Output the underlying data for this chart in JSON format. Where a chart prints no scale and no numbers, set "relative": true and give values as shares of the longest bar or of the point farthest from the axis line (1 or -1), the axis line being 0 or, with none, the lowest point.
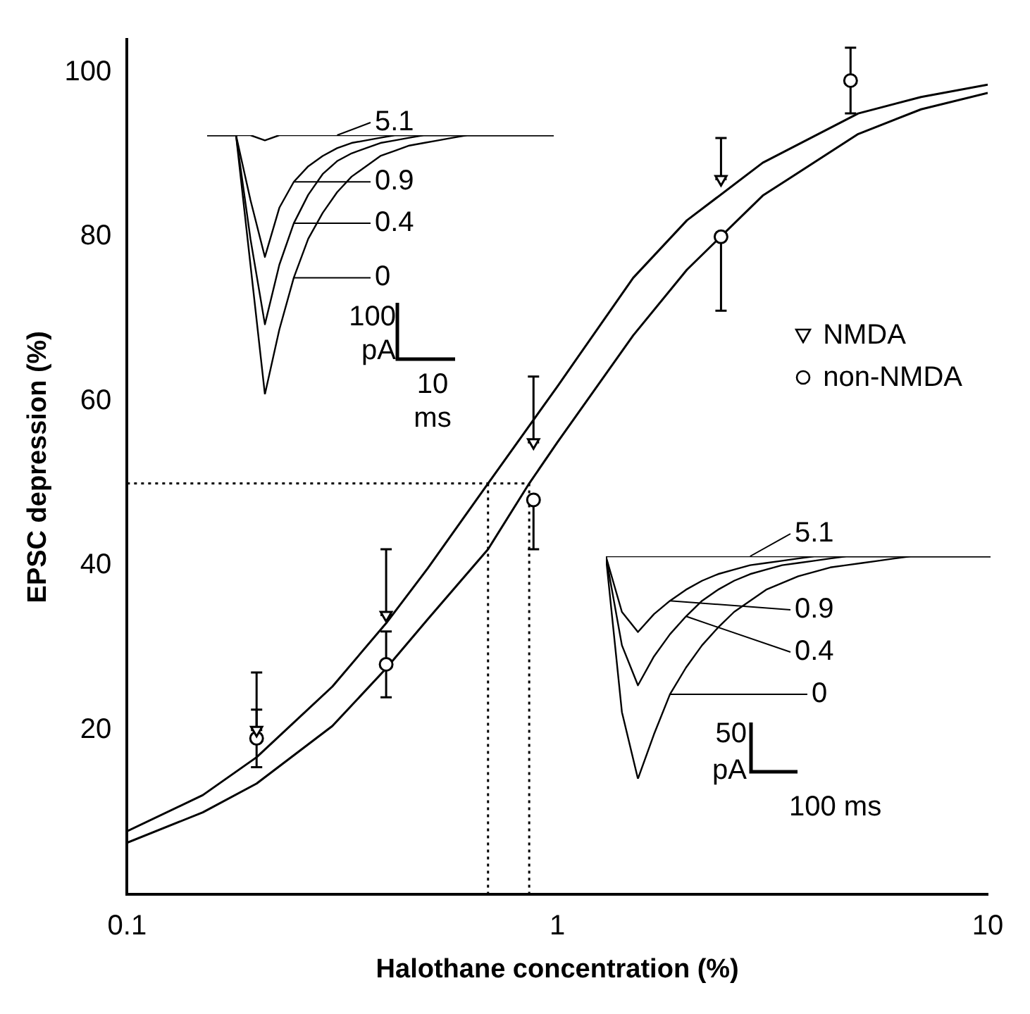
{
  "chart_data": [
    {
      "type": "scatter",
      "xlabel": "Halothane concentration (%)",
      "ylabel": "EPSC depression (%)",
      "log": "x",
      "xlim": [
        0.1,
        10
      ],
      "xticks": [
        0.1,
        1,
        10
      ],
      "ylim": [
        0,
        104
      ],
      "yticks": [
        20,
        40,
        60,
        80,
        100
      ],
      "grid": false,
      "legend": "right",
      "series": [
        {
          "name": "NMDA",
          "type": "scatter",
          "marker": "triangle",
          "color": "#000000",
          "x": [
            0.2,
            0.4,
            0.88,
            2.4
          ],
          "values": [
            20,
            34,
            55,
            87
          ],
          "errors": [
            [
              20,
              27
            ],
            [
              34,
              42
            ],
            [
              55,
              63
            ],
            [
              87,
              92
            ]
          ]
        },
        {
          "name": "non-NMDA",
          "type": "scatter",
          "marker": "circle",
          "color": "#000000",
          "x": [
            0.2,
            0.4,
            0.88,
            2.4,
            4.8
          ],
          "values": [
            19,
            28,
            48,
            80,
            99
          ],
          "errors": [
            3.5,
            4,
            [
              42,
              48
            ],
            [
              71,
              80
            ],
            4
          ]
        },
        {
          "type": "line",
          "color": "#000000",
          "line_style": "solid",
          "x": [
            0.1,
            0.15,
            0.2,
            0.3,
            0.4,
            0.5,
            0.69,
            1,
            1.5,
            2,
            3,
            5,
            7,
            10
          ],
          "values": [
            7.7,
            12.1,
            16.7,
            25.3,
            33,
            39.7,
            50,
            61.8,
            75,
            82,
            89,
            95,
            97,
            98.5
          ]
        },
        {
          "type": "line",
          "color": "#000000",
          "line_style": "solid",
          "x": [
            0.1,
            0.15,
            0.2,
            0.3,
            0.4,
            0.5,
            0.69,
            0.86,
            1,
            1.5,
            2,
            3,
            5,
            7,
            10
          ],
          "values": [
            6.3,
            10,
            13.5,
            20.5,
            27.5,
            33.5,
            42,
            50,
            55,
            68,
            76,
            85,
            92.5,
            95.5,
            97.5
          ]
        },
        {
          "type": "line",
          "color": "#000000",
          "line_style": "dotted",
          "x": [
            0.1,
            0.86
          ],
          "values": [
            50,
            50
          ]
        },
        {
          "type": "line",
          "color": "#000000",
          "line_style": "dotted",
          "x": [
            0.69,
            0.69
          ],
          "values": [
            0,
            50
          ]
        },
        {
          "type": "line",
          "color": "#000000",
          "line_style": "dotted",
          "x": [
            0.86,
            0.86
          ],
          "values": [
            0,
            50
          ]
        }
      ]
    },
    {
      "type": "line",
      "relative": true,
      "categories": [
        null,
        null,
        null,
        null,
        null,
        null,
        null,
        null,
        null,
        null,
        null,
        null,
        null,
        null,
        null,
        null,
        null,
        null,
        null,
        null,
        null,
        null,
        null,
        null,
        null
      ],
      "series": [
        {
          "name": "5.1",
          "color": "#000000",
          "values": [
            1,
            1,
            1,
            1,
            0.98,
            1,
            1,
            1,
            1,
            1,
            1,
            1,
            1,
            1,
            1,
            1,
            1,
            1,
            1,
            1,
            1,
            1,
            1,
            1,
            1
          ]
        },
        {
          "name": "0.9",
          "color": "#000000",
          "values": [
            1,
            1,
            1,
            0.75,
            0.53,
            0.72,
            0.82,
            0.88,
            0.92,
            0.95,
            0.97,
            0.98,
            0.99,
            1,
            1,
            1,
            1,
            1,
            1,
            1,
            1,
            1,
            1,
            1,
            1
          ]
        },
        {
          "name": "0.4",
          "color": "#000000",
          "values": [
            1,
            1,
            1,
            0.6,
            0.27,
            0.5,
            0.66,
            0.77,
            0.85,
            0.9,
            0.93,
            0.95,
            0.97,
            0.98,
            0.99,
            1,
            1,
            1,
            1,
            1,
            1,
            1,
            1,
            1,
            1
          ]
        },
        {
          "name": "0",
          "color": "#000000",
          "values": [
            1,
            1,
            1,
            0.5,
            0,
            0.25,
            0.45,
            0.6,
            0.7,
            0.78,
            0.84,
            0.88,
            0.92,
            0.94,
            0.96,
            0.97,
            0.98,
            0.99,
            1,
            1,
            1,
            1,
            1,
            1,
            1
          ]
        }
      ],
      "legend": "top left",
      "annotations": [
        "100",
        "pA",
        "10",
        "ms"
      ]
    },
    {
      "type": "line",
      "relative": true,
      "categories": [
        null,
        null,
        null,
        null,
        null,
        null,
        null,
        null,
        null,
        null,
        null,
        null,
        null,
        null,
        null,
        null,
        null,
        null,
        null,
        null,
        null,
        null,
        null,
        null,
        null
      ],
      "series": [
        {
          "name": "5.1",
          "color": "#000000",
          "values": [
            1,
            1,
            1,
            1,
            1,
            1,
            1,
            1,
            1,
            1,
            1,
            1,
            1,
            1,
            1,
            1,
            1,
            1,
            1,
            1,
            1,
            1,
            1,
            1,
            1
          ]
        },
        {
          "name": "0.9",
          "color": "#000000",
          "values": [
            1,
            0.75,
            0.66,
            0.74,
            0.8,
            0.85,
            0.89,
            0.92,
            0.94,
            0.96,
            0.97,
            0.98,
            0.99,
            1,
            1,
            1,
            1,
            1,
            1,
            1,
            1,
            1,
            1,
            1,
            1
          ]
        },
        {
          "name": "0.4",
          "color": "#000000",
          "values": [
            1,
            0.6,
            0.42,
            0.55,
            0.65,
            0.73,
            0.8,
            0.85,
            0.89,
            0.92,
            0.94,
            0.96,
            0.97,
            0.98,
            0.99,
            1,
            1,
            1,
            1,
            1,
            1,
            1,
            1,
            1,
            1
          ]
        },
        {
          "name": "0",
          "color": "#000000",
          "values": [
            1,
            0.3,
            0,
            0.2,
            0.38,
            0.5,
            0.6,
            0.68,
            0.75,
            0.8,
            0.85,
            0.88,
            0.91,
            0.93,
            0.95,
            0.96,
            0.97,
            0.98,
            0.99,
            1,
            1,
            1,
            1,
            1,
            1
          ]
        }
      ],
      "legend": "top left",
      "annotations": [
        "50",
        "pA",
        "100 ms"
      ]
    }
  ]
}
